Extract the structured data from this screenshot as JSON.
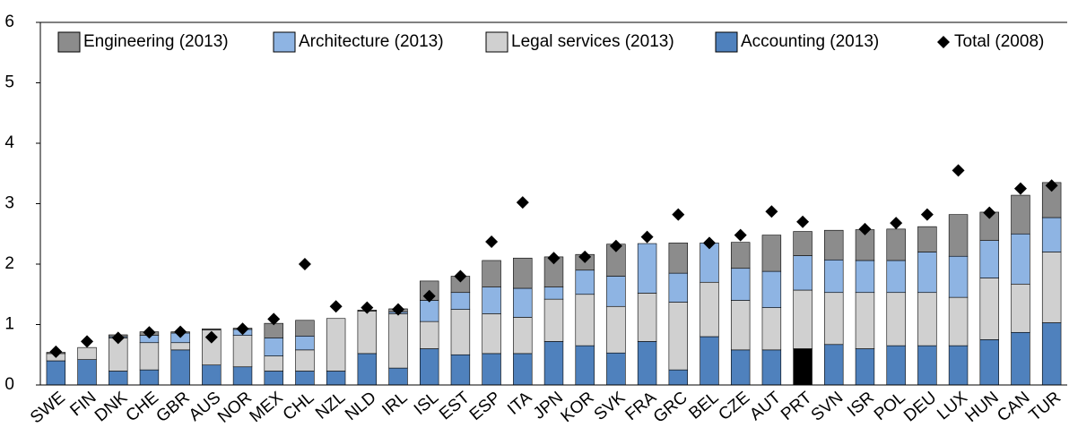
{
  "chart_data": {
    "type": "stacked_bar",
    "categories": [
      "SWE",
      "FIN",
      "DNK",
      "CHE",
      "GBR",
      "AUS",
      "NOR",
      "MEX",
      "CHL",
      "NZL",
      "NLD",
      "IRL",
      "ISL",
      "EST",
      "ESP",
      "ITA",
      "JPN",
      "KOR",
      "SVK",
      "FRA",
      "GRC",
      "BEL",
      "CZE",
      "AUT",
      "PRT",
      "SVN",
      "ISR",
      "POL",
      "DEU",
      "LUX",
      "HUN",
      "CAN",
      "TUR"
    ],
    "series": [
      {
        "name": "Accounting (2013)",
        "color": "#4f81bd",
        "values": [
          0.4,
          0.42,
          0.23,
          0.25,
          0.58,
          0.33,
          0.3,
          0.23,
          0.23,
          0.23,
          0.52,
          0.28,
          0.6,
          0.5,
          0.52,
          0.52,
          0.72,
          0.65,
          0.53,
          0.72,
          0.25,
          0.8,
          0.58,
          0.58,
          0.6,
          0.67,
          0.6,
          0.65,
          0.65,
          0.65,
          0.75,
          0.87,
          1.03
        ]
      },
      {
        "name": "Legal services (2013)",
        "color": "#d0d0d0",
        "values": [
          0.12,
          0.2,
          0.55,
          0.45,
          0.12,
          0.58,
          0.52,
          0.25,
          0.35,
          0.87,
          0.7,
          0.9,
          0.45,
          0.75,
          0.66,
          0.6,
          0.7,
          0.85,
          0.77,
          0.8,
          1.12,
          0.9,
          0.82,
          0.7,
          0.97,
          0.86,
          0.93,
          0.88,
          0.88,
          0.8,
          1.02,
          0.8,
          1.17
        ]
      },
      {
        "name": "Architecture (2013)",
        "color": "#8eb4e3",
        "values": [
          0,
          0,
          0.02,
          0.12,
          0.16,
          0,
          0.1,
          0.3,
          0.23,
          0,
          0,
          0.03,
          0.35,
          0.28,
          0.44,
          0.48,
          0.2,
          0.4,
          0.5,
          0.82,
          0.48,
          0.65,
          0.53,
          0.6,
          0.57,
          0.54,
          0.53,
          0.53,
          0.67,
          0.68,
          0.62,
          0.83,
          0.57
        ]
      },
      {
        "name": "Engineering (2013)",
        "color": "#8c8c8c",
        "values": [
          0.02,
          0,
          0.03,
          0.06,
          0.02,
          0.02,
          0.02,
          0.24,
          0.26,
          0,
          0.02,
          0.05,
          0.32,
          0.27,
          0.44,
          0.5,
          0.5,
          0.26,
          0.53,
          0,
          0.5,
          0,
          0.43,
          0.6,
          0.4,
          0.49,
          0.51,
          0.52,
          0.42,
          0.69,
          0.47,
          0.64,
          0.58
        ]
      }
    ],
    "markers": {
      "name": "Total (2008)",
      "color": "#000000",
      "values": [
        0.55,
        0.72,
        0.78,
        0.87,
        0.88,
        0.79,
        0.93,
        1.09,
        2.0,
        1.3,
        1.28,
        1.25,
        1.47,
        1.8,
        2.37,
        3.02,
        2.1,
        2.12,
        2.3,
        2.45,
        2.82,
        2.35,
        2.48,
        2.87,
        2.7,
        null,
        2.58,
        2.68,
        2.82,
        3.55,
        2.85,
        3.25,
        3.3
      ]
    },
    "highlight": {
      "category": "PRT",
      "color": "#000000"
    },
    "ylim": [
      0,
      6
    ],
    "yticks": [
      0,
      1,
      2,
      3,
      4,
      5,
      6
    ],
    "legend": "top"
  }
}
